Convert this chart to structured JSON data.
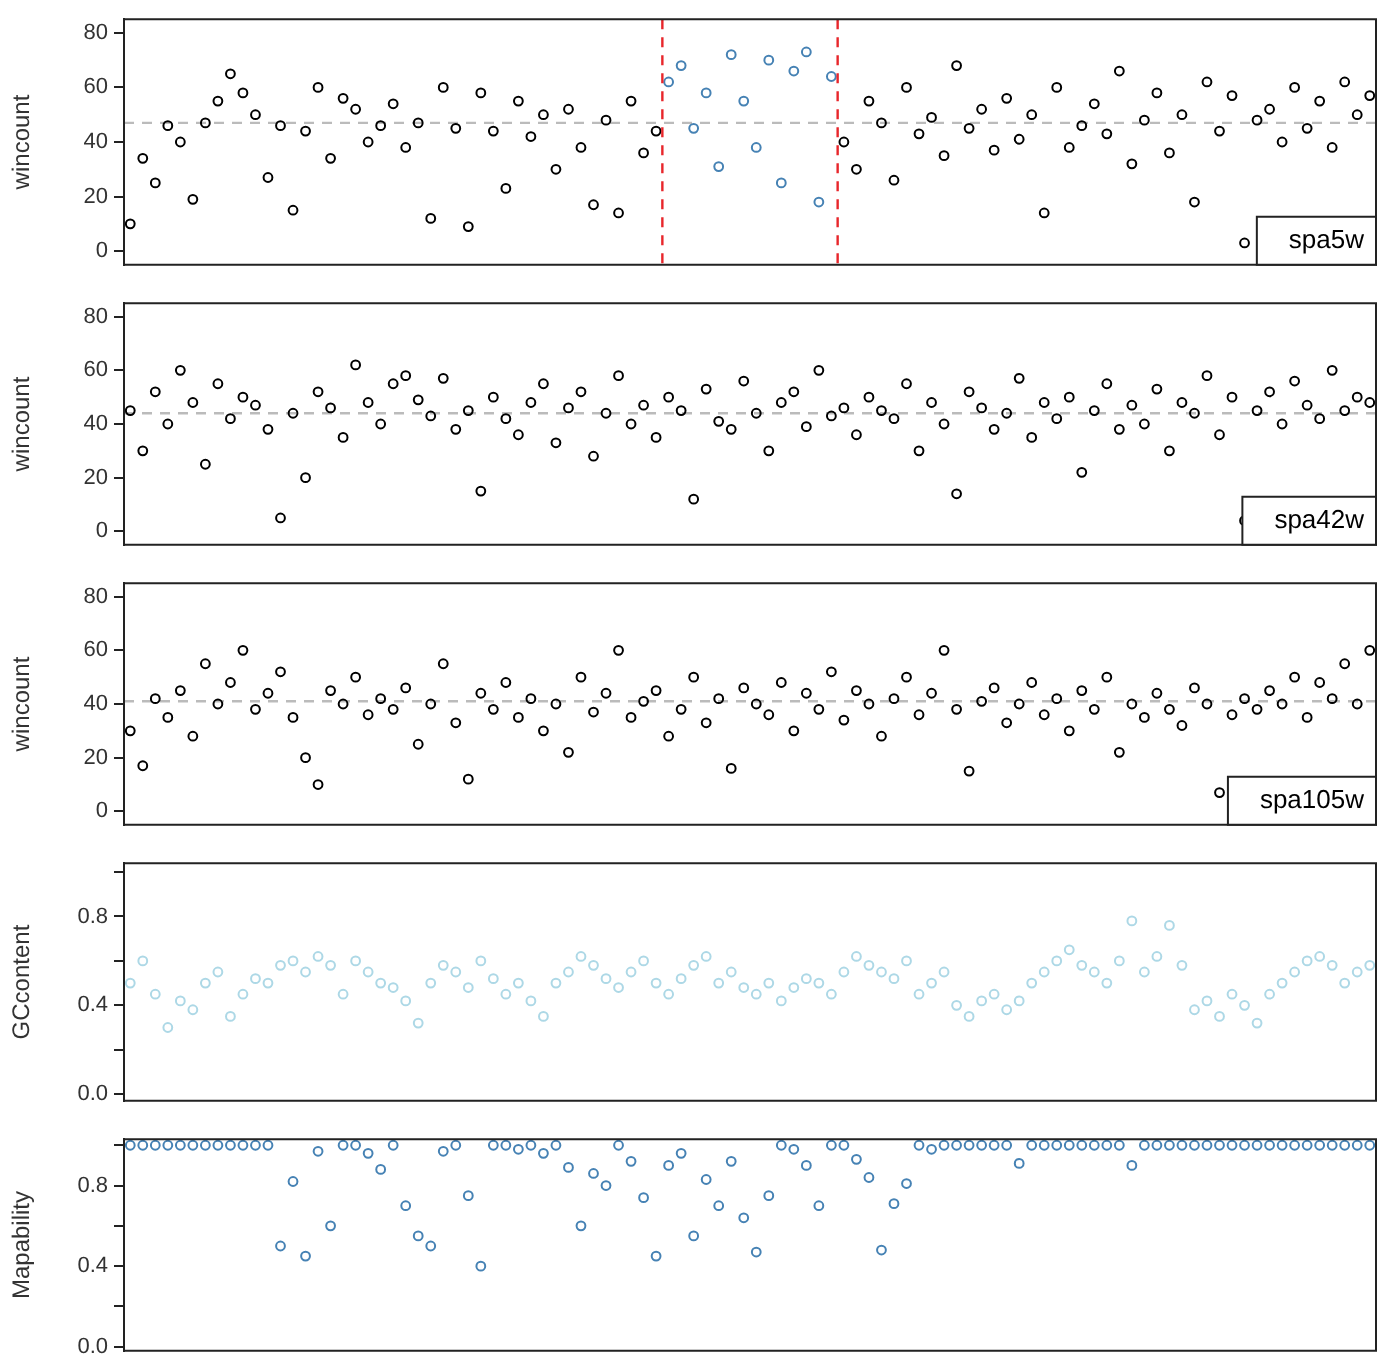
{
  "chart_data": [
    {
      "type": "scatter",
      "ylabel": "wincount",
      "marker": "circle",
      "tick_labels": "y",
      "ylim": [
        -5,
        85
      ],
      "yticks": [
        0,
        20,
        40,
        60,
        80
      ],
      "categories": [
        null,
        null,
        null,
        null,
        null,
        null,
        null,
        null,
        null,
        null,
        null,
        null,
        null,
        null,
        null,
        null,
        null,
        null,
        null,
        null,
        null,
        null,
        null,
        null,
        null,
        null,
        null,
        null,
        null,
        null,
        null,
        null,
        null,
        null,
        null,
        null,
        null,
        null,
        null,
        null,
        null,
        null,
        null,
        null,
        null,
        null,
        null,
        null,
        null,
        null,
        null,
        null,
        null,
        null,
        null,
        null,
        null,
        null,
        null,
        null,
        null,
        null,
        null,
        null,
        null,
        null,
        null,
        null,
        null,
        null,
        null,
        null,
        null,
        null,
        null,
        null,
        null,
        null,
        null,
        null,
        null,
        null,
        null,
        null,
        null,
        null,
        null,
        null,
        null,
        null,
        null,
        null,
        null,
        null,
        null,
        null,
        null,
        null,
        null,
        null
      ],
      "series": [
        {
          "color": "#000000",
          "values": [
            10,
            34,
            25,
            46,
            40,
            19,
            47,
            55,
            65,
            58,
            50,
            27,
            46,
            15,
            44,
            60,
            34,
            56,
            52,
            40,
            46,
            54,
            38,
            47,
            12,
            60,
            45,
            9,
            58,
            44,
            23,
            55,
            42,
            50,
            30,
            52,
            38,
            17,
            48,
            14,
            55,
            36,
            44,
            null,
            null,
            null,
            null,
            null,
            null,
            null,
            null,
            null,
            null,
            null,
            null,
            null,
            null,
            40,
            30,
            55,
            47,
            26,
            60,
            43,
            49,
            35,
            68,
            45,
            52,
            37,
            56,
            41,
            50,
            14,
            60,
            38,
            46,
            54,
            43,
            66,
            32,
            48,
            58,
            36,
            50,
            18,
            62,
            44,
            57,
            3,
            48,
            52,
            40,
            60,
            45,
            55,
            38,
            62,
            50,
            57
          ]
        },
        {
          "color": "#4682b4",
          "values": [
            null,
            null,
            null,
            null,
            null,
            null,
            null,
            null,
            null,
            null,
            null,
            null,
            null,
            null,
            null,
            null,
            null,
            null,
            null,
            null,
            null,
            null,
            null,
            null,
            null,
            null,
            null,
            null,
            null,
            null,
            null,
            null,
            null,
            null,
            null,
            null,
            null,
            null,
            null,
            null,
            null,
            null,
            null,
            62,
            68,
            45,
            58,
            31,
            72,
            55,
            38,
            70,
            25,
            66,
            73,
            18,
            64,
            null,
            null,
            null,
            null,
            null,
            null,
            null,
            null,
            null,
            null,
            null,
            null,
            null,
            null,
            null,
            null,
            null,
            null,
            null,
            null,
            null,
            null,
            null,
            null,
            null,
            null,
            null,
            null,
            null,
            null,
            null,
            null,
            null,
            null,
            null,
            null,
            null,
            null,
            null,
            null,
            null,
            null,
            null
          ]
        }
      ],
      "ref_lines": [
        {
          "axis": "y",
          "value": 47,
          "color": "#bbbbbb",
          "line_style": "dashed"
        }
      ],
      "annotations": [
        "spa5w"
      ]
    },
    {
      "type": "scatter",
      "ylabel": "wincount",
      "marker": "circle",
      "tick_labels": "y",
      "ylim": [
        -5,
        85
      ],
      "yticks": [
        0,
        20,
        40,
        60,
        80
      ],
      "categories": [
        null,
        null,
        null,
        null,
        null,
        null,
        null,
        null,
        null,
        null,
        null,
        null,
        null,
        null,
        null,
        null,
        null,
        null,
        null,
        null,
        null,
        null,
        null,
        null,
        null,
        null,
        null,
        null,
        null,
        null,
        null,
        null,
        null,
        null,
        null,
        null,
        null,
        null,
        null,
        null,
        null,
        null,
        null,
        null,
        null,
        null,
        null,
        null,
        null,
        null,
        null,
        null,
        null,
        null,
        null,
        null,
        null,
        null,
        null,
        null,
        null,
        null,
        null,
        null,
        null,
        null,
        null,
        null,
        null,
        null,
        null,
        null,
        null,
        null,
        null,
        null,
        null,
        null,
        null,
        null,
        null,
        null,
        null,
        null,
        null,
        null,
        null,
        null,
        null,
        null,
        null,
        null,
        null,
        null,
        null,
        null,
        null,
        null,
        null,
        null
      ],
      "series": [
        {
          "color": "#000000",
          "values": [
            45,
            30,
            52,
            40,
            60,
            48,
            25,
            55,
            42,
            50,
            47,
            38,
            5,
            44,
            20,
            52,
            46,
            35,
            62,
            48,
            40,
            55,
            58,
            49,
            43,
            57,
            38,
            45,
            15,
            50,
            42,
            36,
            48,
            55,
            33,
            46,
            52,
            28,
            44,
            58,
            40,
            47,
            35,
            50,
            45,
            12,
            53,
            41,
            38,
            56,
            44,
            30,
            48,
            52,
            39,
            60,
            43,
            46,
            36,
            50,
            45,
            42,
            55,
            30,
            48,
            40,
            14,
            52,
            46,
            38,
            44,
            57,
            35,
            48,
            42,
            50,
            22,
            45,
            55,
            38,
            47,
            40,
            53,
            30,
            48,
            44,
            58,
            36,
            50,
            4,
            45,
            52,
            40,
            56,
            47,
            42,
            60,
            45,
            50,
            48
          ]
        }
      ],
      "ref_lines": [
        {
          "axis": "y",
          "value": 44,
          "color": "#bbbbbb",
          "line_style": "dashed"
        }
      ],
      "annotations": [
        "spa42w"
      ]
    },
    {
      "type": "scatter",
      "ylabel": "wincount",
      "marker": "circle",
      "tick_labels": "y",
      "ylim": [
        -5,
        85
      ],
      "yticks": [
        0,
        20,
        40,
        60,
        80
      ],
      "categories": [
        null,
        null,
        null,
        null,
        null,
        null,
        null,
        null,
        null,
        null,
        null,
        null,
        null,
        null,
        null,
        null,
        null,
        null,
        null,
        null,
        null,
        null,
        null,
        null,
        null,
        null,
        null,
        null,
        null,
        null,
        null,
        null,
        null,
        null,
        null,
        null,
        null,
        null,
        null,
        null,
        null,
        null,
        null,
        null,
        null,
        null,
        null,
        null,
        null,
        null,
        null,
        null,
        null,
        null,
        null,
        null,
        null,
        null,
        null,
        null,
        null,
        null,
        null,
        null,
        null,
        null,
        null,
        null,
        null,
        null,
        null,
        null,
        null,
        null,
        null,
        null,
        null,
        null,
        null,
        null,
        null,
        null,
        null,
        null,
        null,
        null,
        null,
        null,
        null,
        null,
        null,
        null,
        null,
        null,
        null,
        null,
        null,
        null,
        null,
        null
      ],
      "series": [
        {
          "color": "#000000",
          "values": [
            30,
            17,
            42,
            35,
            45,
            28,
            55,
            40,
            48,
            60,
            38,
            44,
            52,
            35,
            20,
            10,
            45,
            40,
            50,
            36,
            42,
            38,
            46,
            25,
            40,
            55,
            33,
            12,
            44,
            38,
            48,
            35,
            42,
            30,
            40,
            22,
            50,
            37,
            44,
            60,
            35,
            41,
            45,
            28,
            38,
            50,
            33,
            42,
            16,
            46,
            40,
            36,
            48,
            30,
            44,
            38,
            52,
            34,
            45,
            40,
            28,
            42,
            50,
            36,
            44,
            60,
            38,
            15,
            41,
            46,
            33,
            40,
            48,
            36,
            42,
            30,
            45,
            38,
            50,
            22,
            40,
            35,
            44,
            38,
            32,
            46,
            40,
            7,
            36,
            42,
            38,
            45,
            40,
            50,
            35,
            48,
            42,
            55,
            40,
            60
          ]
        }
      ],
      "ref_lines": [
        {
          "axis": "y",
          "value": 41,
          "color": "#bbbbbb",
          "line_style": "dashed"
        }
      ],
      "annotations": [
        "spa105w"
      ]
    },
    {
      "type": "scatter",
      "ylabel": "GCcontent",
      "marker": "circle",
      "tick_labels": "y",
      "ylim": [
        -0.03,
        1.04
      ],
      "yticks": [
        {
          "value": 0,
          "label": "0.0"
        },
        {
          "value": 0.2,
          "label": null
        },
        0.4,
        {
          "value": 0.6,
          "label": null
        },
        0.8,
        {
          "value": 1,
          "label": null
        }
      ],
      "categories": [
        null,
        null,
        null,
        null,
        null,
        null,
        null,
        null,
        null,
        null,
        null,
        null,
        null,
        null,
        null,
        null,
        null,
        null,
        null,
        null,
        null,
        null,
        null,
        null,
        null,
        null,
        null,
        null,
        null,
        null,
        null,
        null,
        null,
        null,
        null,
        null,
        null,
        null,
        null,
        null,
        null,
        null,
        null,
        null,
        null,
        null,
        null,
        null,
        null,
        null,
        null,
        null,
        null,
        null,
        null,
        null,
        null,
        null,
        null,
        null,
        null,
        null,
        null,
        null,
        null,
        null,
        null,
        null,
        null,
        null,
        null,
        null,
        null,
        null,
        null,
        null,
        null,
        null,
        null,
        null,
        null,
        null,
        null,
        null,
        null,
        null,
        null,
        null,
        null,
        null,
        null,
        null,
        null,
        null,
        null,
        null,
        null,
        null,
        null,
        null
      ],
      "series": [
        {
          "color": "#add8e6",
          "values": [
            0.5,
            0.6,
            0.45,
            0.3,
            0.42,
            0.38,
            0.5,
            0.55,
            0.35,
            0.45,
            0.52,
            0.5,
            0.58,
            0.6,
            0.55,
            0.62,
            0.58,
            0.45,
            0.6,
            0.55,
            0.5,
            0.48,
            0.42,
            0.32,
            0.5,
            0.58,
            0.55,
            0.48,
            0.6,
            0.52,
            0.45,
            0.5,
            0.42,
            0.35,
            0.5,
            0.55,
            0.62,
            0.58,
            0.52,
            0.48,
            0.55,
            0.6,
            0.5,
            0.45,
            0.52,
            0.58,
            0.62,
            0.5,
            0.55,
            0.48,
            0.45,
            0.5,
            0.42,
            0.48,
            0.52,
            0.5,
            0.45,
            0.55,
            0.62,
            0.58,
            0.55,
            0.52,
            0.6,
            0.45,
            0.5,
            0.55,
            0.4,
            0.35,
            0.42,
            0.45,
            0.38,
            0.42,
            0.5,
            0.55,
            0.6,
            0.65,
            0.58,
            0.55,
            0.5,
            0.6,
            0.78,
            0.55,
            0.62,
            0.76,
            0.58,
            0.38,
            0.42,
            0.35,
            0.45,
            0.4,
            0.32,
            0.45,
            0.5,
            0.55,
            0.6,
            0.62,
            0.58,
            0.5,
            0.55,
            0.58
          ]
        }
      ]
    },
    {
      "type": "scatter",
      "ylabel": "Mapability",
      "marker": "circle",
      "tick_labels": "y",
      "ylim": [
        -0.02,
        1.03
      ],
      "yticks": [
        {
          "value": 0,
          "label": "0.0"
        },
        {
          "value": 0.2,
          "label": null
        },
        0.4,
        {
          "value": 0.6,
          "label": null
        },
        0.8,
        {
          "value": 1,
          "label": null
        }
      ],
      "categories": [
        null,
        null,
        null,
        null,
        null,
        null,
        null,
        null,
        null,
        null,
        null,
        null,
        null,
        null,
        null,
        null,
        null,
        null,
        null,
        null,
        null,
        null,
        null,
        null,
        null,
        null,
        null,
        null,
        null,
        null,
        null,
        null,
        null,
        null,
        null,
        null,
        null,
        null,
        null,
        null,
        null,
        null,
        null,
        null,
        null,
        null,
        null,
        null,
        null,
        null,
        null,
        null,
        null,
        null,
        null,
        null,
        null,
        null,
        null,
        null,
        null,
        null,
        null,
        null,
        null,
        null,
        null,
        null,
        null,
        null,
        null,
        null,
        null,
        null,
        null,
        null,
        null,
        null,
        null,
        null,
        null,
        null,
        null,
        null,
        null,
        null,
        null,
        null,
        null,
        null,
        null,
        null,
        null,
        null,
        null,
        null,
        null,
        null,
        null,
        null
      ],
      "series": [
        {
          "color": "#4682b4",
          "values": [
            1,
            1,
            1,
            1,
            1,
            1,
            1,
            1,
            1,
            1,
            1,
            1,
            0.5,
            0.82,
            0.45,
            0.97,
            0.6,
            1,
            1,
            0.96,
            0.88,
            1,
            0.7,
            0.55,
            0.5,
            0.97,
            1,
            0.75,
            0.4,
            1,
            1,
            0.98,
            1,
            0.96,
            1,
            0.89,
            0.6,
            0.86,
            0.8,
            1,
            0.92,
            0.74,
            0.45,
            0.9,
            0.96,
            0.55,
            0.83,
            0.7,
            0.92,
            0.64,
            0.47,
            0.75,
            1,
            0.98,
            0.9,
            0.7,
            1,
            1,
            0.93,
            0.84,
            0.48,
            0.71,
            0.81,
            1,
            0.98,
            1,
            1,
            1,
            1,
            1,
            1,
            0.91,
            1,
            1,
            1,
            1,
            1,
            1,
            1,
            1,
            0.9,
            1,
            1,
            1,
            1,
            1,
            1,
            1,
            1,
            1,
            1,
            1,
            1,
            1,
            1,
            1,
            1,
            1,
            1,
            1
          ]
        }
      ]
    }
  ]
}
